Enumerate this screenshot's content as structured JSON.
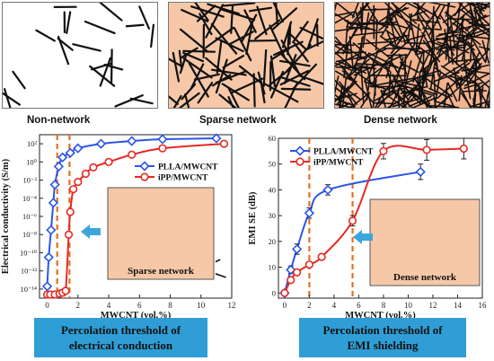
{
  "panels": [
    {
      "label": "Non-network",
      "fill": "#ffffff",
      "density": 22,
      "len": 28
    },
    {
      "label": "Sparse network",
      "fill": "#f6c8a8",
      "density": 90,
      "len": 34
    },
    {
      "label": "Dense network",
      "fill": "#f3b38e",
      "density": 330,
      "len": 32
    }
  ],
  "inset_labels": {
    "left": "Sparse network",
    "right": "Dense network"
  },
  "captions": {
    "left": {
      "line1": "Percolation threshold of",
      "line2": "electrical conduction"
    },
    "right": {
      "line1": "Percolation threshold of",
      "line2": "EMI shielding"
    }
  },
  "colors": {
    "plla": "#2b55e8",
    "ipp": "#e52a23",
    "threshold": "#e57021",
    "caption_bg": "#2f9ed6",
    "arrow": "#3ba6dc",
    "inset_fill": "#f6c8a8"
  },
  "chart_data": [
    {
      "type": "line",
      "xlabel": "MWCNT (vol.%)",
      "ylabel": "Electrical conductivity (S/m)",
      "yscale": "log",
      "xlim": [
        -0.5,
        12
      ],
      "ylim": [
        -15,
        3
      ],
      "xticks": [
        0,
        2,
        4,
        6,
        8,
        10,
        12
      ],
      "yticks": [
        {
          "v": 2,
          "t": "10²"
        },
        {
          "v": 0,
          "t": "10⁰"
        },
        {
          "v": -2,
          "t": "10⁻²"
        },
        {
          "v": -4,
          "t": "10⁻⁴"
        },
        {
          "v": -6,
          "t": "10⁻⁶"
        },
        {
          "v": -8,
          "t": "10⁻⁸"
        },
        {
          "v": -10,
          "t": "10⁻¹⁰"
        },
        {
          "v": -12,
          "t": "10⁻¹²"
        },
        {
          "v": -14,
          "t": "10⁻¹⁴"
        }
      ],
      "legend": "top-right",
      "thresholds": [
        0.65,
        1.45
      ],
      "series": [
        {
          "name": "PLLA/MWCNT",
          "color": "#2b55e8",
          "marker": "diamond",
          "x": [
            0,
            0.1,
            0.25,
            0.4,
            0.5,
            0.75,
            1.0,
            1.5,
            2.0,
            3.5,
            5.5,
            7.5,
            11.0
          ],
          "y": [
            -13.7,
            -10.5,
            -7.5,
            -4.5,
            -2.5,
            -0.5,
            0.5,
            1.0,
            1.5,
            2.0,
            2.3,
            2.5,
            2.6
          ]
        },
        {
          "name": "iPP/MWCNT",
          "color": "#e52a23",
          "marker": "circle",
          "x": [
            0,
            0.2,
            0.5,
            0.8,
            1.0,
            1.2,
            1.4,
            1.5,
            1.7,
            2.0,
            2.5,
            3.0,
            4.0,
            5.5,
            7.5,
            11.5
          ],
          "y": [
            -14.6,
            -14.6,
            -14.6,
            -14.5,
            -14.4,
            -14.2,
            -8.0,
            -5.5,
            -3.0,
            -2.2,
            -1.3,
            -0.6,
            0.0,
            0.8,
            1.5,
            2.0
          ]
        }
      ]
    },
    {
      "type": "line",
      "xlabel": "MWCNT (vol.%)",
      "ylabel": "EMI SE (dB)",
      "xlim": [
        -0.5,
        16
      ],
      "ylim": [
        -2,
        60
      ],
      "xticks": [
        0,
        2,
        4,
        6,
        8,
        10,
        12,
        14,
        16
      ],
      "yticks": [
        0,
        10,
        20,
        30,
        40,
        50,
        60
      ],
      "legend": "top-left",
      "thresholds": [
        2.0,
        5.5
      ],
      "series": [
        {
          "name": "PLLA/MWCNT",
          "color": "#2b55e8",
          "marker": "diamond",
          "x": [
            0,
            0.5,
            1.0,
            2.0,
            3.5,
            11.0
          ],
          "y": [
            0,
            9,
            17,
            31,
            40,
            47
          ],
          "err": [
            1,
            1.5,
            2,
            2,
            2,
            3
          ]
        },
        {
          "name": "iPP/MWCNT",
          "color": "#e52a23",
          "marker": "circle",
          "x": [
            0,
            0.5,
            1.0,
            2.0,
            3.0,
            5.5,
            8.0,
            11.5,
            14.5
          ],
          "y": [
            0,
            5,
            8,
            11,
            14,
            28,
            55,
            55.5,
            56
          ],
          "err": [
            0.5,
            1,
            1,
            1,
            1,
            2,
            3,
            4,
            4
          ]
        }
      ]
    }
  ]
}
